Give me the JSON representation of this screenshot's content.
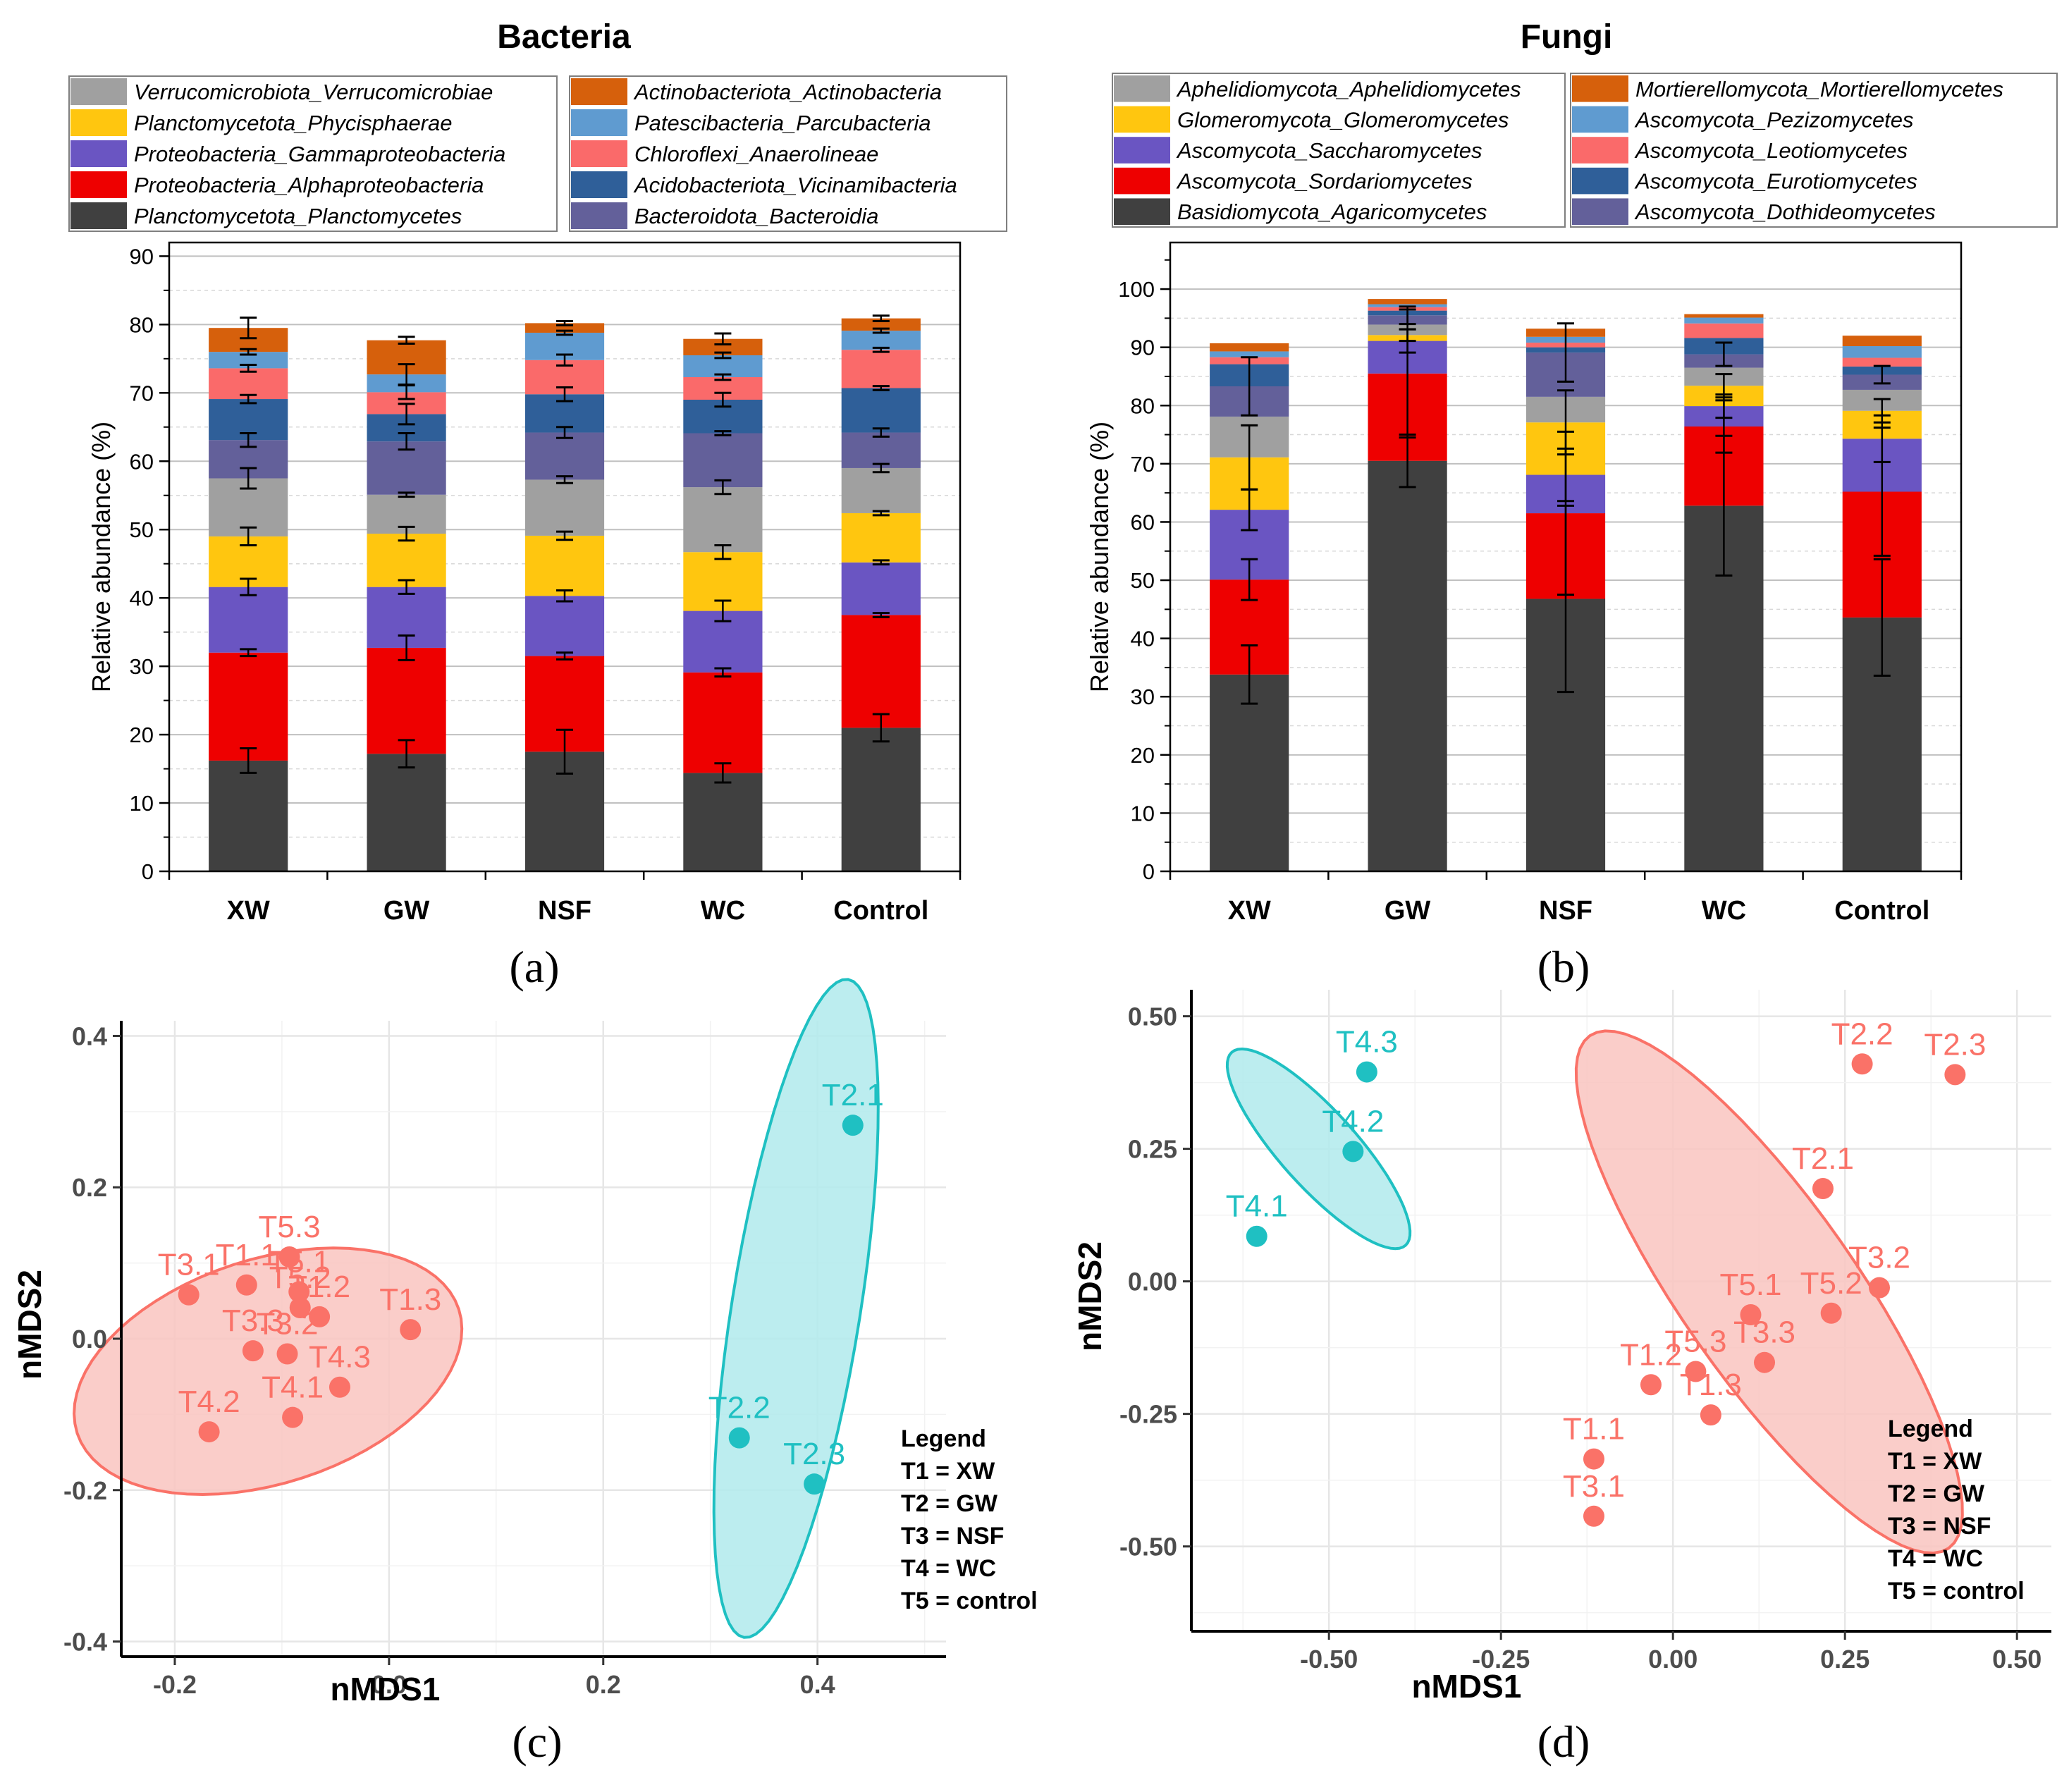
{
  "chart_data": [
    {
      "panel": "(a)",
      "type": "bar",
      "stacked": true,
      "title": "Bacteria",
      "xlabel": "",
      "ylabel": "Relative abundance (%)",
      "ylim": [
        0,
        92
      ],
      "yticks": [
        0,
        10,
        20,
        30,
        40,
        50,
        60,
        70,
        80,
        90
      ],
      "categories": [
        "XW",
        "GW",
        "NSF",
        "WC",
        "Control"
      ],
      "series": [
        {
          "name": "Planctomycetota_Planctomycetes",
          "color": "#404040",
          "values": [
            16.2,
            17.2,
            17.5,
            14.4,
            21.0
          ],
          "err": [
            1.8,
            2.0,
            3.2,
            1.4,
            2.0
          ]
        },
        {
          "name": "Proteobacteria_Alphaproteobacteria",
          "color": "#ee0000",
          "values": [
            15.8,
            15.5,
            14.0,
            14.7,
            16.5
          ],
          "err": [
            0.5,
            1.8,
            0.5,
            0.6,
            0.3
          ]
        },
        {
          "name": "Proteobacteria_Gammaproteobacteria",
          "color": "#6a55c2",
          "values": [
            9.6,
            8.9,
            8.8,
            9.0,
            7.7
          ],
          "err": [
            1.2,
            1.0,
            0.8,
            1.5,
            0.3
          ]
        },
        {
          "name": "Planctomycetota_Phycisphaerae",
          "color": "#ffc60f",
          "values": [
            7.4,
            7.8,
            8.8,
            8.6,
            7.2
          ],
          "err": [
            1.3,
            1.0,
            0.6,
            1.0,
            0.3
          ]
        },
        {
          "name": "Verrucomicrobiota_Verrucomicrobiae",
          "color": "#a0a0a0",
          "values": [
            8.5,
            5.7,
            8.2,
            9.5,
            6.6
          ],
          "err": [
            1.5,
            0.3,
            0.5,
            1.0,
            0.6
          ]
        },
        {
          "name": "Bacteroidota_Bacteroidia",
          "color": "#63609a",
          "values": [
            5.6,
            7.8,
            6.9,
            7.9,
            5.2
          ],
          "err": [
            1.0,
            1.2,
            0.8,
            0.3,
            0.6
          ]
        },
        {
          "name": "Acidobacteriota_Vicinamibacteria",
          "color": "#2f5f99",
          "values": [
            6.0,
            4.0,
            5.6,
            4.9,
            6.5
          ],
          "err": [
            0.6,
            1.5,
            1.0,
            1.0,
            0.3
          ]
        },
        {
          "name": "Chloroflexi_Anaerolineae",
          "color": "#fa6a6a",
          "values": [
            4.5,
            3.2,
            5.0,
            3.3,
            5.6
          ],
          "err": [
            0.5,
            1.0,
            0.8,
            0.4,
            0.3
          ]
        },
        {
          "name": "Patescibacteria_Parcubacteria",
          "color": "#5f9bd0",
          "values": [
            2.4,
            2.6,
            4.0,
            3.2,
            2.8
          ],
          "err": [
            0.4,
            1.5,
            0.3,
            0.4,
            0.3
          ]
        },
        {
          "name": "Actinobacteriota_Actinobacteria",
          "color": "#d6600c",
          "values": [
            3.5,
            5.0,
            1.4,
            2.4,
            1.8
          ],
          "err": [
            1.5,
            0.5,
            0.3,
            0.8,
            0.4
          ]
        }
      ],
      "legend_left": [
        "Verrucomicrobiota_Verrucomicrobiae",
        "Planctomycetota_Phycisphaerae",
        "Proteobacteria_Gammaproteobacteria",
        "Proteobacteria_Alphaproteobacteria",
        "Planctomycetota_Planctomycetes"
      ],
      "legend_right": [
        "Actinobacteriota_Actinobacteria",
        "Patescibacteria_Parcubacteria",
        "Chloroflexi_Anaerolineae",
        "Acidobacteriota_Vicinamibacteria",
        "Bacteroidota_Bacteroidia"
      ],
      "grid": true
    },
    {
      "panel": "(b)",
      "type": "bar",
      "stacked": true,
      "title": "Fungi",
      "xlabel": "",
      "ylabel": "Relative abundance (%)",
      "ylim": [
        0,
        108
      ],
      "yticks": [
        0,
        10,
        20,
        30,
        40,
        50,
        60,
        70,
        80,
        90,
        100
      ],
      "categories": [
        "XW",
        "GW",
        "NSF",
        "WC",
        "Control"
      ],
      "series": [
        {
          "name": "Basidiomycota_Agaricomycetes",
          "color": "#404040",
          "values": [
            33.8,
            70.5,
            46.8,
            62.8,
            43.6
          ],
          "err": [
            5.0,
            4.5,
            16.0,
            12.0,
            10.0
          ]
        },
        {
          "name": "Ascomycota_Sordariomycetes",
          "color": "#ee0000",
          "values": [
            16.3,
            15.0,
            14.7,
            13.6,
            21.6
          ],
          "err": [
            3.5,
            11.0,
            14.0,
            4.5,
            11.0
          ]
        },
        {
          "name": "Ascomycota_Saccharomycetes",
          "color": "#6a55c2",
          "values": [
            12.0,
            5.6,
            6.6,
            3.5,
            9.1
          ],
          "err": [
            3.5,
            2.0,
            4.5,
            2.0,
            4.0
          ]
        },
        {
          "name": "Glomeromycota_Glomeromycetes",
          "color": "#ffc60f",
          "values": [
            9.0,
            1.0,
            9.0,
            3.5,
            4.8
          ],
          "err": [
            5.5,
            1.0,
            5.5,
            2.0,
            2.0
          ]
        },
        {
          "name": "Aphelidiomycota_Aphelidiomycetes",
          "color": "#a0a0a0",
          "values": [
            7.0,
            1.8,
            4.4,
            3.1,
            3.6
          ],
          "err": [
            0,
            0,
            0,
            0,
            0
          ]
        },
        {
          "name": "Ascomycota_Dothideomycetes",
          "color": "#63609a",
          "values": [
            5.2,
            1.6,
            7.6,
            2.3,
            2.6
          ],
          "err": [
            5.0,
            1.5,
            5.0,
            2.0,
            1.5
          ]
        },
        {
          "name": "Ascomycota_Eurotiomycetes",
          "color": "#2f5f99",
          "values": [
            3.8,
            0.8,
            0.9,
            2.8,
            1.4
          ],
          "err": [
            0,
            0,
            0,
            0,
            0
          ]
        },
        {
          "name": "Ascomycota_Leotiomycetes",
          "color": "#fa6a6a",
          "values": [
            1.2,
            0.6,
            0.8,
            2.5,
            1.5
          ],
          "err": [
            0,
            0,
            0,
            0,
            0
          ]
        },
        {
          "name": "Ascomycota_Pezizomycetes",
          "color": "#5f9bd0",
          "values": [
            1.0,
            0.5,
            1.0,
            1.0,
            2.0
          ],
          "err": [
            0,
            0,
            0,
            0,
            0
          ]
        },
        {
          "name": "Mortierellomycota_Mortierellomycetes",
          "color": "#d6600c",
          "values": [
            1.4,
            0.9,
            1.4,
            0.6,
            1.8
          ],
          "err": [
            0,
            0,
            0,
            0,
            0
          ]
        }
      ],
      "legend_left": [
        "Aphelidiomycota_Aphelidiomycetes",
        "Glomeromycota_Glomeromycetes",
        "Ascomycota_Saccharomycetes",
        "Ascomycota_Sordariomycetes",
        "Basidiomycota_Agaricomycetes"
      ],
      "legend_right": [
        "Mortierellomycota_Mortierellomycetes",
        "Ascomycota_Pezizomycetes",
        "Ascomycota_Leotiomycetes",
        "Ascomycota_Eurotiomycetes",
        "Ascomycota_Dothideomycetes"
      ],
      "grid": true
    },
    {
      "panel": "(c)",
      "type": "scatter",
      "xlabel": "nMDS1",
      "ylabel": "nMDS2",
      "xlim": [
        -0.25,
        0.52
      ],
      "ylim": [
        -0.42,
        0.42
      ],
      "xticks": [
        -0.2,
        0.0,
        0.2,
        0.4
      ],
      "xticklabels": [
        "-0.2",
        "0.0",
        "0.2",
        "0.4"
      ],
      "yticks": [
        -0.4,
        -0.2,
        0.0,
        0.2,
        0.4
      ],
      "yticklabels": [
        "-0.4",
        "-0.2",
        "0.0",
        "0.2",
        "0.4"
      ],
      "groups": [
        {
          "color": "#fa7268",
          "fill": "#f9c4c0",
          "ellipse": {
            "cx": -0.113,
            "cy": -0.043,
            "rx": 0.265,
            "ry": 0.148,
            "angle_deg": 18
          },
          "points": [
            {
              "label": "T3.1",
              "x": -0.187,
              "y": 0.058
            },
            {
              "label": "T1.1",
              "x": -0.133,
              "y": 0.071
            },
            {
              "label": "T5.3",
              "x": -0.093,
              "y": 0.108
            },
            {
              "label": "T5.1",
              "x": -0.084,
              "y": 0.062
            },
            {
              "label": "T5.2",
              "x": -0.083,
              "y": 0.041
            },
            {
              "label": "T1.2",
              "x": -0.065,
              "y": 0.029
            },
            {
              "label": "T1.3",
              "x": 0.02,
              "y": 0.012
            },
            {
              "label": "T3.3",
              "x": -0.127,
              "y": -0.016
            },
            {
              "label": "T3.2",
              "x": -0.095,
              "y": -0.02
            },
            {
              "label": "T4.3",
              "x": -0.046,
              "y": -0.064
            },
            {
              "label": "T4.1",
              "x": -0.09,
              "y": -0.104
            },
            {
              "label": "T4.2",
              "x": -0.168,
              "y": -0.123
            }
          ]
        },
        {
          "color": "#1fc0c2",
          "fill": "#b0eaec",
          "ellipse": {
            "cx": 0.38,
            "cy": 0.04,
            "rx": 0.44,
            "ry": 0.085,
            "angle_deg": 81
          },
          "points": [
            {
              "label": "T2.1",
              "x": 0.433,
              "y": 0.282
            },
            {
              "label": "T2.2",
              "x": 0.327,
              "y": -0.131
            },
            {
              "label": "T2.3",
              "x": 0.397,
              "y": -0.192
            }
          ]
        }
      ],
      "legend_title": "Legend",
      "legend_items": [
        "T1 = XW",
        "T2 = GW",
        "T3 = NSF",
        "T4 = WC",
        "T5 = control"
      ],
      "grid": true
    },
    {
      "panel": "(d)",
      "type": "scatter",
      "xlabel": "nMDS1",
      "ylabel": "nMDS2",
      "xlim": [
        -0.7,
        0.55
      ],
      "ylim": [
        -0.66,
        0.55
      ],
      "xticks": [
        -0.5,
        -0.25,
        0.0,
        0.25,
        0.5
      ],
      "xticklabels": [
        "-0.50",
        "-0.25",
        "0.00",
        "0.25",
        "0.50"
      ],
      "yticks": [
        -0.5,
        -0.25,
        0.0,
        0.25,
        0.5
      ],
      "yticklabels": [
        "-0.50",
        "-0.25",
        "0.00",
        "0.25",
        "0.50"
      ],
      "groups": [
        {
          "color": "#fa7268",
          "fill": "#f9c4c0",
          "ellipse": {
            "cx": 0.14,
            "cy": -0.02,
            "rx": 0.59,
            "ry": 0.165,
            "angle_deg": -55
          },
          "points": [
            {
              "label": "T2.2",
              "x": 0.275,
              "y": 0.41
            },
            {
              "label": "T2.3",
              "x": 0.41,
              "y": 0.39
            },
            {
              "label": "T2.1",
              "x": 0.218,
              "y": 0.175
            },
            {
              "label": "T3.2",
              "x": 0.3,
              "y": -0.012
            },
            {
              "label": "T5.2",
              "x": 0.23,
              "y": -0.06
            },
            {
              "label": "T5.1",
              "x": 0.113,
              "y": -0.063
            },
            {
              "label": "T3.3",
              "x": 0.133,
              "y": -0.153
            },
            {
              "label": "T5.3",
              "x": 0.033,
              "y": -0.17
            },
            {
              "label": "T1.2",
              "x": -0.032,
              "y": -0.195
            },
            {
              "label": "T1.3",
              "x": 0.055,
              "y": -0.252
            },
            {
              "label": "T1.1",
              "x": -0.115,
              "y": -0.335
            },
            {
              "label": "T3.1",
              "x": -0.115,
              "y": -0.443
            }
          ]
        },
        {
          "color": "#1fc0c2",
          "fill": "#b0eaec",
          "ellipse": {
            "cx": -0.515,
            "cy": 0.25,
            "rx": 0.245,
            "ry": 0.072,
            "angle_deg": -48
          },
          "points": [
            {
              "label": "T4.3",
              "x": -0.445,
              "y": 0.395
            },
            {
              "label": "T4.2",
              "x": -0.465,
              "y": 0.245
            },
            {
              "label": "T4.1",
              "x": -0.605,
              "y": 0.085
            }
          ]
        }
      ],
      "legend_title": "Legend",
      "legend_items": [
        "T1 = XW",
        "T2 = GW",
        "T3 = NSF",
        "T4 = WC",
        "T5 = control"
      ],
      "grid": true
    }
  ]
}
